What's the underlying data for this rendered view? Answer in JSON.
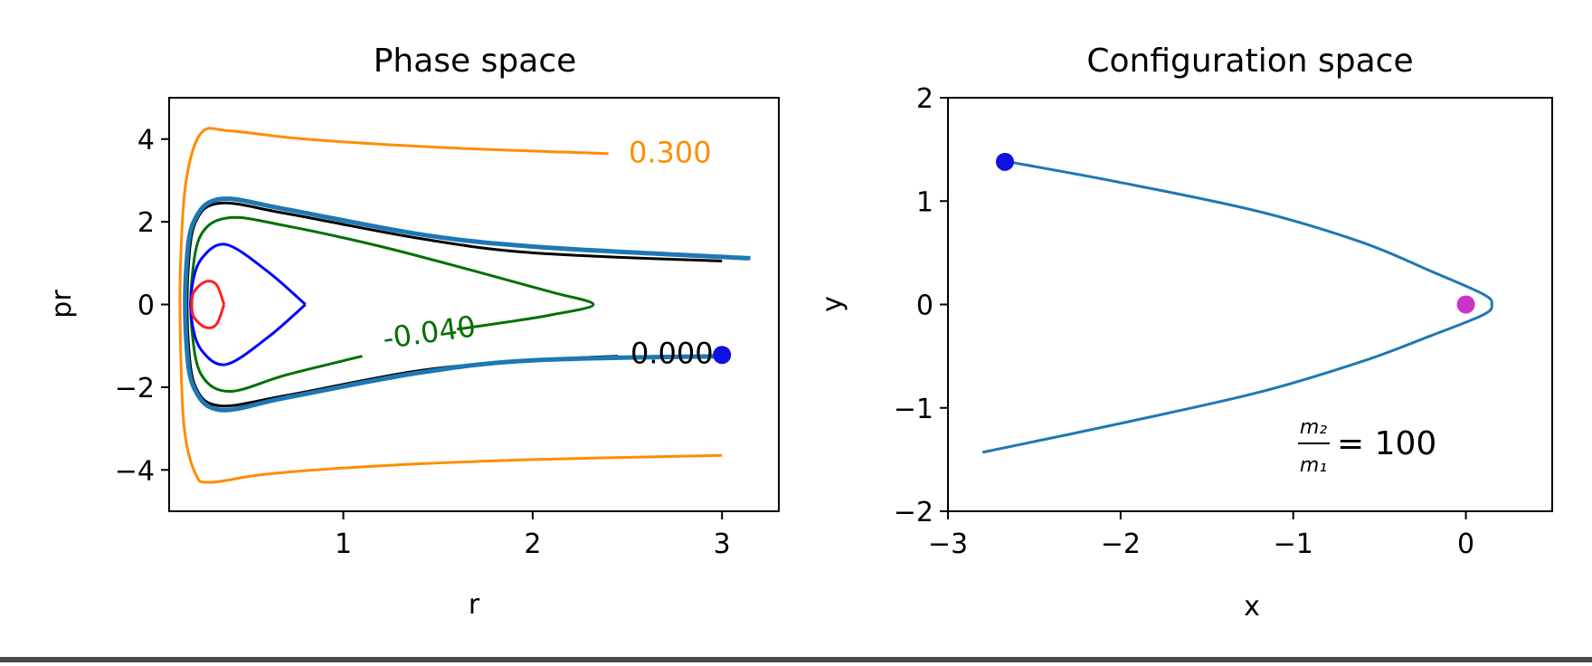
{
  "chart_data": [
    {
      "type": "line",
      "title": "Phase space",
      "xlabel": "r",
      "ylabel": "pr",
      "xlim": [
        0.08,
        3.3
      ],
      "ylim": [
        -5,
        5
      ],
      "xticks": [
        1,
        2,
        3
      ],
      "yticks": [
        -4,
        -2,
        0,
        2,
        4
      ],
      "xtick_labels": [
        "1",
        "2",
        "3"
      ],
      "ytick_labels": [
        "−4",
        "−2",
        "0",
        "2",
        "4"
      ],
      "contours": [
        {
          "label": "0.300",
          "color": "#ff8c00",
          "points": [
            [
              2.4,
              3.65
            ],
            [
              1.5,
              3.8
            ],
            [
              0.8,
              4.0
            ],
            [
              0.4,
              4.2
            ],
            [
              0.25,
              4.15
            ],
            [
              0.17,
              3.0
            ],
            [
              0.14,
              1.0
            ],
            [
              0.14,
              -1.0
            ],
            [
              0.16,
              -3.0
            ],
            [
              0.22,
              -4.1
            ],
            [
              0.3,
              -4.3
            ],
            [
              0.6,
              -4.1
            ],
            [
              1.2,
              -3.9
            ],
            [
              2.0,
              -3.75
            ],
            [
              3.0,
              -3.65
            ]
          ]
        },
        {
          "label": "0.000",
          "color": "#000000",
          "points": [
            [
              3.0,
              1.05
            ],
            [
              2.0,
              1.25
            ],
            [
              1.4,
              1.6
            ],
            [
              0.7,
              2.2
            ],
            [
              0.35,
              2.45
            ],
            [
              0.22,
              2.0
            ],
            [
              0.18,
              0.8
            ],
            [
              0.18,
              -0.8
            ],
            [
              0.22,
              -2.0
            ],
            [
              0.35,
              -2.45
            ],
            [
              0.7,
              -2.2
            ],
            [
              1.4,
              -1.6
            ],
            [
              2.0,
              -1.35
            ],
            [
              2.45,
              -1.25
            ]
          ]
        },
        {
          "label": "-0.040",
          "color": "#007000",
          "points": [
            [
              1.1,
              -1.25
            ],
            [
              0.7,
              -1.7
            ],
            [
              0.4,
              -2.1
            ],
            [
              0.25,
              -1.7
            ],
            [
              0.2,
              -0.6
            ],
            [
              0.2,
              0.6
            ],
            [
              0.25,
              1.7
            ],
            [
              0.4,
              2.1
            ],
            [
              0.7,
              1.9
            ],
            [
              1.2,
              1.4
            ],
            [
              1.7,
              0.8
            ],
            [
              2.1,
              0.3
            ],
            [
              2.32,
              0.0
            ],
            [
              2.1,
              -0.25
            ],
            [
              1.9,
              -0.4
            ],
            [
              1.6,
              -0.6
            ]
          ]
        },
        {
          "label": "",
          "color": "#0000ff",
          "points": [
            [
              0.8,
              0.0
            ],
            [
              0.6,
              0.8
            ],
            [
              0.38,
              1.45
            ],
            [
              0.25,
              1.1
            ],
            [
              0.2,
              0.4
            ],
            [
              0.2,
              -0.4
            ],
            [
              0.25,
              -1.1
            ],
            [
              0.38,
              -1.45
            ],
            [
              0.6,
              -0.8
            ],
            [
              0.8,
              0.0
            ]
          ]
        },
        {
          "label": "",
          "color": "#ff2020",
          "points": [
            [
              0.37,
              0.0
            ],
            [
              0.33,
              0.48
            ],
            [
              0.27,
              0.55
            ],
            [
              0.21,
              0.3
            ],
            [
              0.2,
              0.0
            ],
            [
              0.21,
              -0.3
            ],
            [
              0.27,
              -0.55
            ],
            [
              0.33,
              -0.48
            ],
            [
              0.37,
              0.0
            ]
          ]
        }
      ],
      "trajectory": {
        "color": "#1f77b4",
        "points": [
          [
            3.0,
            -1.25
          ],
          [
            2.0,
            -1.35
          ],
          [
            1.4,
            -1.65
          ],
          [
            0.7,
            -2.25
          ],
          [
            0.35,
            -2.55
          ],
          [
            0.21,
            -2.0
          ],
          [
            0.17,
            -0.8
          ],
          [
            0.17,
            0.8
          ],
          [
            0.21,
            2.0
          ],
          [
            0.35,
            2.55
          ],
          [
            0.7,
            2.3
          ],
          [
            1.4,
            1.7
          ],
          [
            2.0,
            1.4
          ],
          [
            3.0,
            1.15
          ],
          [
            3.15,
            1.12
          ]
        ]
      },
      "marker": {
        "x": 3.0,
        "y": -1.22,
        "color": "#1010e0"
      }
    },
    {
      "type": "line",
      "title": "Configuration space",
      "xlabel": "x",
      "ylabel": "y",
      "xlim": [
        -3,
        0.5
      ],
      "ylim": [
        -2,
        2
      ],
      "xticks": [
        -3,
        -2,
        -1,
        0
      ],
      "yticks": [
        -2,
        -1,
        0,
        1,
        2
      ],
      "xtick_labels": [
        "−3",
        "−2",
        "−1",
        "0"
      ],
      "ytick_labels": [
        "−2",
        "−1",
        "0",
        "1",
        "2"
      ],
      "series": [
        {
          "color": "#1f77b4",
          "points": [
            [
              -2.8,
              -1.43
            ],
            [
              -2.0,
              -1.15
            ],
            [
              -1.2,
              -0.85
            ],
            [
              -0.6,
              -0.55
            ],
            [
              -0.2,
              -0.3
            ],
            [
              0.1,
              -0.1
            ],
            [
              0.15,
              0.0
            ],
            [
              0.1,
              0.1
            ],
            [
              -0.2,
              0.32
            ],
            [
              -0.6,
              0.6
            ],
            [
              -1.2,
              0.9
            ],
            [
              -2.0,
              1.18
            ],
            [
              -2.65,
              1.38
            ]
          ]
        }
      ],
      "markers": [
        {
          "x": -2.67,
          "y": 1.38,
          "color": "#1010e0"
        },
        {
          "x": 0.0,
          "y": 0.0,
          "color": "#cc33cc"
        }
      ],
      "annotation": {
        "numerator": "m₂",
        "denominator": "m₁",
        "text": "= 100"
      }
    }
  ]
}
